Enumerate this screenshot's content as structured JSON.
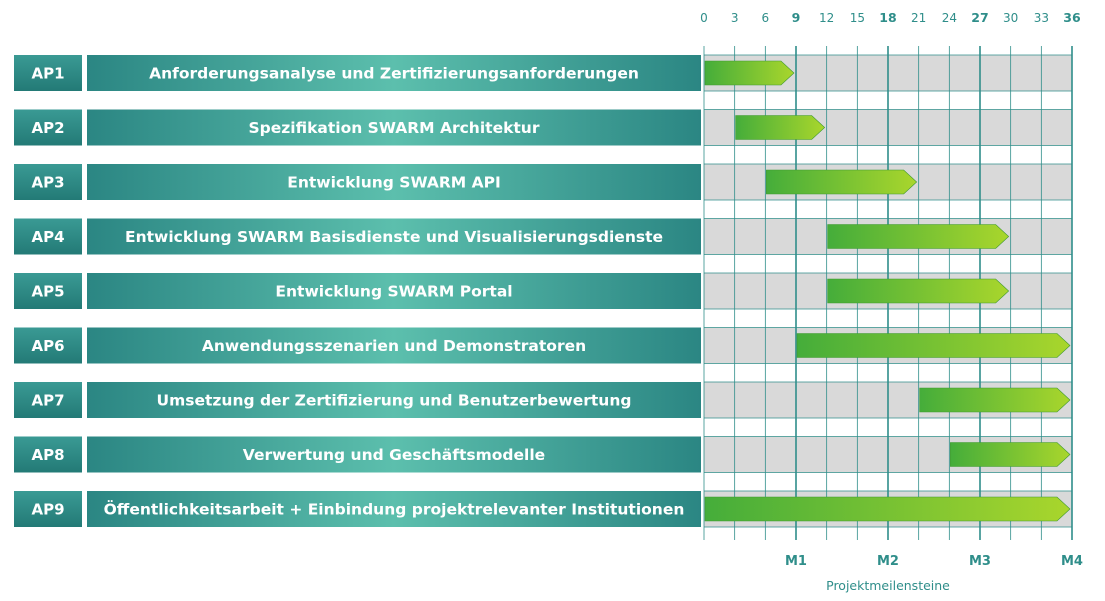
{
  "chart_data": {
    "type": "gantt",
    "x_unit": "months",
    "xlim": [
      0,
      36
    ],
    "ticks": [
      0,
      3,
      6,
      9,
      12,
      15,
      18,
      21,
      24,
      27,
      30,
      33,
      36
    ],
    "major_ticks": [
      9,
      18,
      27,
      36
    ],
    "xlabel": "Projektmeilensteine",
    "milestones": [
      {
        "label": "M1",
        "month": 9
      },
      {
        "label": "M2",
        "month": 18
      },
      {
        "label": "M3",
        "month": 27
      },
      {
        "label": "M4",
        "month": 36
      }
    ],
    "tasks": [
      {
        "code": "AP1",
        "name": "Anforderungsanalyse und Zertifizierungsanforderungen",
        "start": 0,
        "end": 9
      },
      {
        "code": "AP2",
        "name": "Spezifikation SWARM Architektur",
        "start": 3,
        "end": 12
      },
      {
        "code": "AP3",
        "name": "Entwicklung SWARM API",
        "start": 6,
        "end": 21
      },
      {
        "code": "AP4",
        "name": "Entwicklung SWARM Basisdienste und Visualisierungsdienste",
        "start": 12,
        "end": 30
      },
      {
        "code": "AP5",
        "name": "Entwicklung SWARM Portal",
        "start": 12,
        "end": 30
      },
      {
        "code": "AP6",
        "name": "Anwendungsszenarien und Demonstratoren",
        "start": 9,
        "end": 36
      },
      {
        "code": "AP7",
        "name": "Umsetzung der Zertifizierung und Benutzerbewertung",
        "start": 21,
        "end": 36
      },
      {
        "code": "AP8",
        "name": "Verwertung und Geschäftsmodelle",
        "start": 24,
        "end": 36
      },
      {
        "code": "AP9",
        "name": "Öffentlichkeitsarbeit + Einbindung projektrelevanter Institutionen",
        "start": 0,
        "end": 36
      }
    ],
    "colors": {
      "teal_dark": "#2b8a86",
      "teal_light": "#5cbfad",
      "grid_fill": "#d9d9d9",
      "grid_line": "#2f8e8a",
      "bar_start": "#4fb23a",
      "bar_end": "#a8d42b",
      "text_accent": "#2f8e8a"
    }
  }
}
